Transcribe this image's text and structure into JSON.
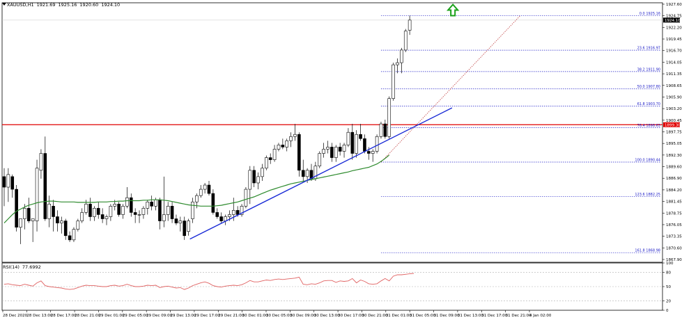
{
  "header": {
    "symbol": "XAUUSD,H1",
    "ohlc": [
      "1921.69",
      "1925.16",
      "1920.60",
      "1924.10"
    ]
  },
  "rsi_header": {
    "label": "RSI(14)",
    "value": "77.6992"
  },
  "colors": {
    "candle_bull_fill": "#ffffff",
    "candle_bear_fill": "#000000",
    "resistance": "#e00000",
    "trendline": "#1a2bd6",
    "moving_average": "#2e8b2e",
    "fib": "#2020c8",
    "rsi_line": "#e06060",
    "arrow": "#1aa11a"
  },
  "chart_data": [
    {
      "type": "candlestick",
      "symbol": "XAUUSD",
      "timeframe": "H1",
      "ylim": [
        1866.7,
        1928.2
      ],
      "ytick_labels": [
        "1927.60",
        "1924.75",
        "1922.20",
        "1919.45",
        "1916.70",
        "1914.05",
        "1911.35",
        "1908.65",
        "1905.90",
        "1903.20",
        "1900.45",
        "1897.75",
        "1895.05",
        "1892.30",
        "1889.60",
        "1886.90",
        "1884.20",
        "1881.45",
        "1878.75",
        "1876.05",
        "1873.35",
        "1870.60",
        "1867.90"
      ],
      "xtick_labels": [
        "28 Dec 2020",
        "28 Dec 13:00",
        "28 Dec 17:00",
        "28 Dec 21:00",
        "29 Dec 01:00",
        "29 Dec 05:00",
        "29 Dec 09:00",
        "29 Dec 13:00",
        "29 Dec 17:00",
        "29 Dec 21:00",
        "30 Dec 01:00",
        "30 Dec 05:00",
        "30 Dec 09:00",
        "30 Dec 13:00",
        "30 Dec 17:00",
        "30 Dec 21:00",
        "31 Dec 01:00",
        "31 Dec 05:00",
        "31 Dec 09:00",
        "31 Dec 13:00",
        "31 Dec 17:00",
        "31 Dec 21:00",
        "4 Jan 02:00"
      ],
      "candles": [
        [
          1887.0,
          1889.0,
          1880.0,
          1884.5
        ],
        [
          1884.5,
          1889.0,
          1881.0,
          1887.5
        ],
        [
          1887.0,
          1887.5,
          1882.0,
          1884.0
        ],
        [
          1884.0,
          1885.0,
          1874.0,
          1875.0
        ],
        [
          1875.0,
          1877.0,
          1871.0,
          1877.0
        ],
        [
          1877.0,
          1880.5,
          1874.5,
          1879.5
        ],
        [
          1879.5,
          1882.0,
          1876.0,
          1876.5
        ],
        [
          1876.5,
          1877.0,
          1871.5,
          1877.0
        ],
        [
          1876.5,
          1891.0,
          1874.0,
          1889.0
        ],
        [
          1888.5,
          1893.5,
          1886.5,
          1892.5
        ],
        [
          1892.5,
          1896.5,
          1876.5,
          1877.0
        ],
        [
          1877.0,
          1882.5,
          1875.0,
          1880.5
        ],
        [
          1880.0,
          1881.5,
          1874.0,
          1877.5
        ],
        [
          1877.5,
          1879.0,
          1874.0,
          1876.0
        ],
        [
          1876.0,
          1877.5,
          1873.5,
          1876.5
        ],
        [
          1876.5,
          1877.0,
          1872.0,
          1873.0
        ],
        [
          1873.0,
          1874.0,
          1871.5,
          1872.0
        ],
        [
          1872.0,
          1875.0,
          1871.5,
          1874.5
        ],
        [
          1874.5,
          1877.0,
          1874.0,
          1876.5
        ],
        [
          1876.5,
          1879.5,
          1876.0,
          1878.5
        ],
        [
          1878.5,
          1881.5,
          1878.0,
          1880.5
        ],
        [
          1880.5,
          1882.0,
          1876.5,
          1877.5
        ],
        [
          1877.5,
          1880.0,
          1876.5,
          1879.5
        ],
        [
          1879.5,
          1881.0,
          1877.0,
          1878.0
        ],
        [
          1878.0,
          1879.5,
          1876.0,
          1877.0
        ],
        [
          1877.0,
          1878.0,
          1875.5,
          1877.5
        ],
        [
          1877.5,
          1880.5,
          1876.5,
          1880.0
        ],
        [
          1880.0,
          1881.5,
          1879.0,
          1880.5
        ],
        [
          1880.5,
          1881.0,
          1877.5,
          1878.0
        ],
        [
          1878.0,
          1880.5,
          1877.0,
          1880.0
        ],
        [
          1880.0,
          1884.5,
          1879.5,
          1882.0
        ],
        [
          1882.0,
          1883.0,
          1877.5,
          1878.5
        ],
        [
          1878.5,
          1879.5,
          1876.0,
          1878.0
        ],
        [
          1878.0,
          1879.0,
          1876.0,
          1878.0
        ],
        [
          1878.0,
          1880.0,
          1877.0,
          1879.5
        ],
        [
          1879.5,
          1881.5,
          1878.0,
          1881.0
        ],
        [
          1881.0,
          1882.5,
          1879.0,
          1880.0
        ],
        [
          1880.0,
          1882.0,
          1879.0,
          1881.5
        ],
        [
          1881.5,
          1882.0,
          1874.5,
          1876.5
        ],
        [
          1876.5,
          1887.0,
          1875.0,
          1878.0
        ],
        [
          1878.0,
          1881.0,
          1876.5,
          1880.0
        ],
        [
          1880.0,
          1881.0,
          1876.0,
          1877.0
        ],
        [
          1877.0,
          1878.0,
          1875.5,
          1876.0
        ],
        [
          1876.0,
          1877.5,
          1874.0,
          1876.5
        ],
        [
          1876.5,
          1877.5,
          1872.0,
          1873.0
        ],
        [
          1874.0,
          1877.0,
          1873.0,
          1876.5
        ],
        [
          1877.0,
          1882.0,
          1876.0,
          1881.0
        ],
        [
          1881.0,
          1883.0,
          1879.5,
          1882.5
        ],
        [
          1882.5,
          1885.0,
          1882.0,
          1884.0
        ],
        [
          1884.0,
          1885.5,
          1883.0,
          1885.0
        ],
        [
          1885.0,
          1886.0,
          1882.5,
          1883.0
        ],
        [
          1883.0,
          1884.0,
          1878.0,
          1878.5
        ],
        [
          1878.5,
          1879.5,
          1877.0,
          1877.5
        ],
        [
          1877.5,
          1878.5,
          1876.0,
          1876.5
        ],
        [
          1876.5,
          1878.0,
          1875.5,
          1877.5
        ],
        [
          1877.5,
          1879.0,
          1876.5,
          1878.0
        ],
        [
          1878.0,
          1882.0,
          1876.5,
          1879.0
        ],
        [
          1879.0,
          1880.0,
          1877.5,
          1878.0
        ],
        [
          1878.0,
          1880.5,
          1877.5,
          1880.0
        ],
        [
          1880.0,
          1884.5,
          1879.5,
          1884.0
        ],
        [
          1884.0,
          1889.5,
          1880.5,
          1888.5
        ],
        [
          1888.5,
          1889.5,
          1884.5,
          1885.5
        ],
        [
          1885.5,
          1888.0,
          1884.0,
          1887.0
        ],
        [
          1887.0,
          1890.0,
          1886.0,
          1889.0
        ],
        [
          1889.0,
          1892.0,
          1888.5,
          1891.5
        ],
        [
          1891.5,
          1892.5,
          1890.0,
          1891.0
        ],
        [
          1891.0,
          1894.5,
          1890.5,
          1893.5
        ],
        [
          1893.5,
          1895.0,
          1893.0,
          1894.5
        ],
        [
          1894.5,
          1896.0,
          1893.5,
          1894.0
        ],
        [
          1894.0,
          1896.0,
          1893.0,
          1895.5
        ],
        [
          1895.5,
          1897.5,
          1894.0,
          1896.5
        ],
        [
          1896.5,
          1899.5,
          1895.5,
          1897.0
        ],
        [
          1897.0,
          1897.5,
          1887.0,
          1888.5
        ],
        [
          1888.5,
          1891.0,
          1886.0,
          1887.0
        ],
        [
          1887.0,
          1889.0,
          1885.5,
          1888.5
        ],
        [
          1888.5,
          1890.0,
          1886.0,
          1886.5
        ],
        [
          1886.5,
          1890.5,
          1886.0,
          1889.5
        ],
        [
          1889.5,
          1893.0,
          1889.0,
          1892.5
        ],
        [
          1892.5,
          1895.0,
          1891.5,
          1893.5
        ],
        [
          1893.5,
          1895.5,
          1892.5,
          1894.0
        ],
        [
          1894.0,
          1895.0,
          1890.5,
          1891.5
        ],
        [
          1891.5,
          1894.5,
          1890.5,
          1894.0
        ],
        [
          1894.0,
          1895.0,
          1892.0,
          1893.0
        ],
        [
          1893.0,
          1895.0,
          1891.5,
          1894.5
        ],
        [
          1894.5,
          1898.5,
          1894.0,
          1897.5
        ],
        [
          1897.5,
          1899.5,
          1891.0,
          1892.5
        ],
        [
          1892.5,
          1898.0,
          1891.5,
          1897.0
        ],
        [
          1897.0,
          1899.5,
          1895.5,
          1896.0
        ],
        [
          1896.0,
          1897.0,
          1892.5,
          1893.0
        ],
        [
          1893.0,
          1894.0,
          1891.0,
          1892.5
        ],
        [
          1892.5,
          1893.5,
          1890.5,
          1893.0
        ],
        [
          1893.0,
          1897.0,
          1892.5,
          1896.5
        ],
        [
          1896.5,
          1900.0,
          1896.0,
          1899.5
        ],
        [
          1899.5,
          1900.5,
          1896.0,
          1896.5
        ],
        [
          1896.5,
          1906.0,
          1896.0,
          1905.5
        ],
        [
          1905.5,
          1914.0,
          1905.0,
          1913.5
        ],
        [
          1913.5,
          1915.0,
          1911.5,
          1914.0
        ],
        [
          1914.0,
          1917.5,
          1911.5,
          1917.0
        ],
        [
          1917.0,
          1922.0,
          1916.5,
          1921.5
        ],
        [
          1921.69,
          1925.16,
          1920.6,
          1924.1
        ]
      ],
      "moving_average": {
        "start_index": 0,
        "values": [
          1876.0,
          1877.0,
          1878.0,
          1878.8,
          1879.3,
          1879.8,
          1880.2,
          1880.5,
          1880.8,
          1881.0,
          1881.1,
          1881.2,
          1881.2,
          1881.1,
          1881.0,
          1881.0,
          1881.0,
          1881.0,
          1880.9,
          1880.9,
          1880.9,
          1880.9,
          1880.9,
          1881.0,
          1881.0,
          1881.0,
          1881.1,
          1881.1,
          1881.2,
          1881.2,
          1881.3,
          1881.3,
          1881.3,
          1881.3,
          1881.4,
          1881.4,
          1881.5,
          1881.5,
          1881.5,
          1881.4,
          1881.3,
          1881.1,
          1880.9,
          1880.7,
          1880.5,
          1880.3,
          1880.2,
          1880.1,
          1880.0,
          1880.0,
          1880.0,
          1880.0,
          1880.1,
          1880.2,
          1880.4,
          1880.6,
          1880.8,
          1881.0,
          1881.3,
          1881.6,
          1881.9,
          1882.2,
          1882.6,
          1883.0,
          1883.4,
          1883.8,
          1884.1,
          1884.4,
          1884.7,
          1885.0,
          1885.3,
          1885.5,
          1885.7,
          1885.9,
          1886.1,
          1886.3,
          1886.5,
          1886.7,
          1886.9,
          1887.1,
          1887.3,
          1887.5,
          1887.7,
          1887.9,
          1888.1,
          1888.4,
          1888.6,
          1888.8,
          1889.0,
          1889.2,
          1889.6,
          1890.0,
          1890.6,
          1891.3,
          1892.1
        ]
      },
      "resistance_level": 1899.3,
      "trendline": {
        "points": [
          {
            "candle": 45,
            "price": 1872.2
          },
          {
            "candle": 109,
            "price": 1903.3
          }
        ]
      },
      "fibonacci": {
        "from_candle": 92,
        "to_candle": 126,
        "levels": [
          {
            "label": "0.0",
            "value": "1925.16",
            "price": 1925.16
          },
          {
            "label": "23.6",
            "value": "1916.97",
            "price": 1916.97
          },
          {
            "label": "38.2",
            "value": "1911.90",
            "price": 1911.9
          },
          {
            "label": "50.0",
            "value": "1907.80",
            "price": 1907.8
          },
          {
            "label": "61.8",
            "value": "1903.70",
            "price": 1903.7
          },
          {
            "label": "76.4",
            "value": "1898.63",
            "price": 1898.63
          },
          {
            "label": "100.0",
            "value": "1890.44",
            "price": 1890.44
          },
          {
            "label": "123.6",
            "value": "1882.25",
            "price": 1882.25
          },
          {
            "label": "161.8",
            "value": "1868.98",
            "price": 1868.98
          }
        ]
      },
      "price_tags": [
        {
          "price": 1924.1,
          "text": "1924.10"
        },
        {
          "price": 1899.3,
          "text": "1899.30"
        }
      ],
      "arrow": {
        "direction": "up",
        "candle": 107,
        "price": 1926.3
      }
    },
    {
      "type": "line",
      "name": "RSI(14)",
      "ylim": [
        0,
        100
      ],
      "ytick_labels": [
        "100",
        "80",
        "50",
        "20",
        "0"
      ],
      "levels": [
        80,
        50,
        20
      ],
      "values": [
        55,
        56,
        54,
        53,
        52,
        55,
        53,
        51,
        58,
        62,
        52,
        50,
        49,
        48,
        47,
        45,
        44,
        45,
        48,
        51,
        53,
        52,
        52,
        51,
        50,
        50,
        52,
        53,
        51,
        52,
        55,
        52,
        50,
        50,
        51,
        53,
        52,
        53,
        48,
        50,
        51,
        49,
        47,
        48,
        44,
        47,
        52,
        55,
        58,
        60,
        57,
        52,
        50,
        49,
        51,
        52,
        53,
        52,
        54,
        58,
        63,
        60,
        60,
        62,
        64,
        63,
        65,
        66,
        65,
        66,
        67,
        68,
        70,
        55,
        54,
        56,
        55,
        58,
        62,
        63,
        63,
        59,
        62,
        61,
        62,
        67,
        58,
        64,
        61,
        56,
        55,
        56,
        62,
        67,
        62,
        72,
        75,
        75,
        76,
        77,
        78
      ]
    }
  ]
}
